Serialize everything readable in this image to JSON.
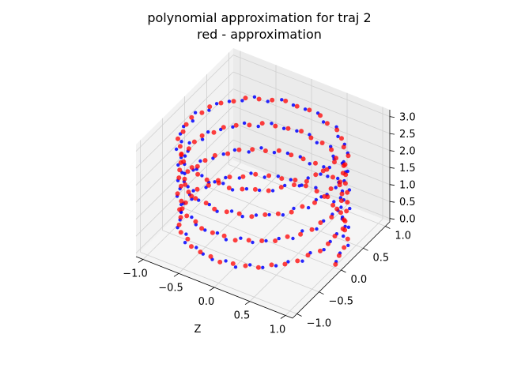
{
  "chart_data": {
    "type": "scatter",
    "projection": "3d",
    "title": "polynomial approximation for traj 2",
    "subtitle": "red - approximation",
    "zlabel_bottom": "Z",
    "x_ticks": [
      "−1.0",
      "−0.5",
      "0.0",
      "0.5",
      "1.0"
    ],
    "y_ticks": [
      "−1.0",
      "−0.5",
      "0.0",
      "0.5",
      "1.0"
    ],
    "z_ticks": [
      "0.0",
      "0.5",
      "1.0",
      "1.5",
      "2.0",
      "2.5",
      "3.0"
    ],
    "xlim": [
      -1.1,
      1.1
    ],
    "ylim": [
      -1.1,
      1.1
    ],
    "zlim": [
      -0.1,
      3.2
    ],
    "grid": true,
    "pane_color": "#f2f2f2",
    "grid_color": "#d0d0d0",
    "series": [
      {
        "color": "#0000ff",
        "marker_size": 2.2,
        "opacity": 0.85,
        "helix": {
          "turns": 4,
          "radius": 1.0,
          "z_range": [
            0,
            3
          ],
          "points": 160
        }
      },
      {
        "color": "#ff0000",
        "marker_size": 3.0,
        "opacity": 0.75,
        "helix": {
          "turns": 4,
          "radius": 1.0,
          "z_range": [
            0,
            3
          ],
          "points": 160
        }
      }
    ]
  }
}
